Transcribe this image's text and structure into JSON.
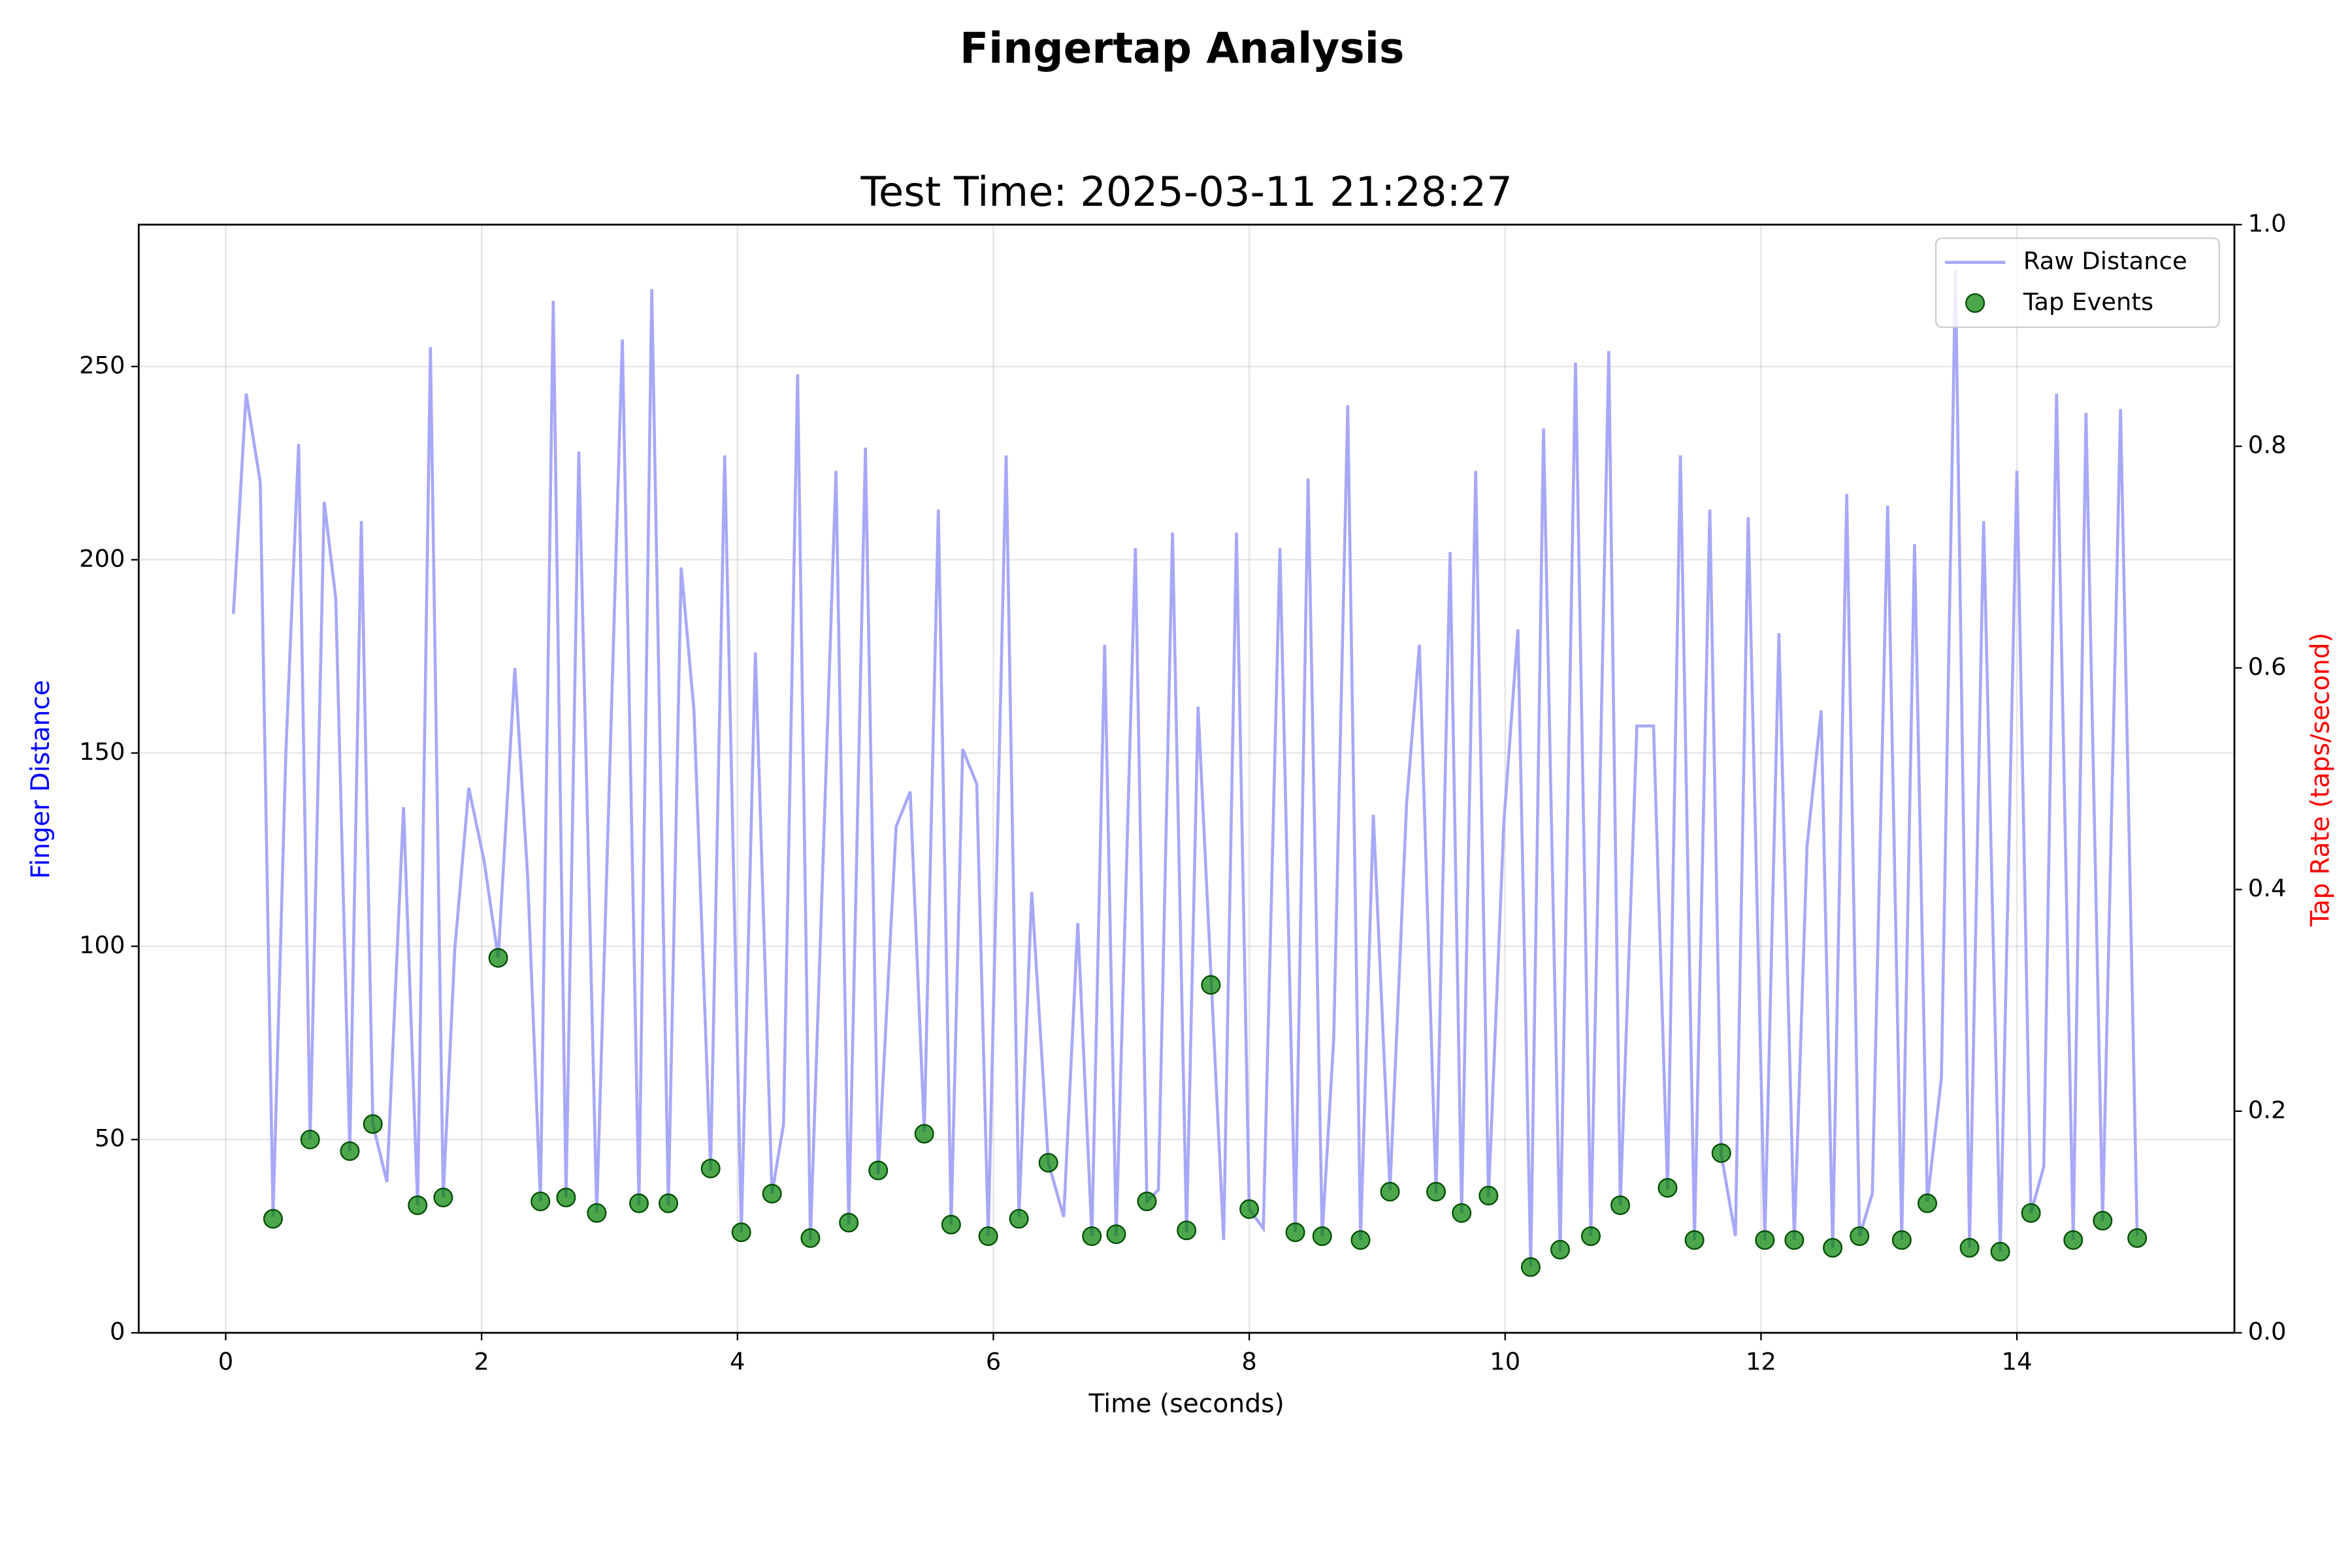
{
  "chart_data": {
    "type": "line",
    "title": "Fingertap Analysis",
    "subtitle": "Test Time: 2025-03-11 21:28:27",
    "xlabel": "Time (seconds)",
    "ylabel": "Finger Distance",
    "ylabel_color": "blue",
    "y2label": "Tap Rate (taps/second)",
    "y2label_color": "red",
    "xlim": [
      -0.68,
      15.7
    ],
    "xticks": [
      0,
      2,
      4,
      6,
      8,
      10,
      12,
      14
    ],
    "ylim": [
      0,
      286.7
    ],
    "yticks": [
      0,
      50,
      100,
      150,
      200,
      250
    ],
    "y2lim": [
      0,
      1
    ],
    "y2ticks": [
      {
        "value": 0,
        "label": "0.0"
      },
      0.2,
      0.4,
      0.6,
      0.8,
      {
        "value": 1,
        "label": "1.0"
      }
    ],
    "grid": true,
    "legend": "upper right",
    "series": [
      {
        "name": "Raw Distance",
        "type": "line",
        "color": "#a8a8f8",
        "x": [
          0.06,
          0.16,
          0.27,
          0.37,
          0.47,
          0.57,
          0.66,
          0.77,
          0.86,
          0.97,
          1.06,
          1.15,
          1.26,
          1.39,
          1.5,
          1.6,
          1.7,
          1.79,
          1.9,
          2.02,
          2.13,
          2.26,
          2.36,
          2.46,
          2.56,
          2.66,
          2.76,
          2.9,
          3.1,
          3.23,
          3.33,
          3.46,
          3.56,
          3.66,
          3.79,
          3.9,
          4.03,
          4.14,
          4.27,
          4.36,
          4.47,
          4.57,
          4.77,
          4.87,
          5.0,
          5.1,
          5.24,
          5.35,
          5.46,
          5.57,
          5.67,
          5.76,
          5.87,
          5.96,
          6.1,
          6.2,
          6.3,
          6.43,
          6.55,
          6.66,
          6.77,
          6.87,
          6.96,
          7.11,
          7.2,
          7.29,
          7.4,
          7.51,
          7.6,
          7.8,
          7.9,
          8.0,
          8.11,
          8.24,
          8.36,
          8.46,
          8.57,
          8.66,
          8.77,
          8.87,
          8.97,
          9.1,
          9.23,
          9.33,
          9.46,
          9.57,
          9.66,
          9.77,
          9.87,
          9.99,
          10.1,
          10.2,
          10.3,
          10.43,
          10.55,
          10.67,
          10.81,
          10.9,
          11.03,
          11.16,
          11.27,
          11.37,
          11.48,
          11.6,
          11.69,
          11.8,
          11.9,
          12.03,
          12.14,
          12.26,
          12.36,
          12.47,
          12.56,
          12.67,
          12.77,
          12.87,
          12.99,
          13.1,
          13.2,
          13.3,
          13.41,
          13.52,
          13.63,
          13.74,
          13.87,
          14.0,
          14.11,
          14.21,
          14.31,
          14.44,
          14.54,
          14.67,
          14.81,
          14.94
        ],
        "values": [
          186,
          243,
          220,
          30,
          150,
          230,
          50,
          215,
          190,
          47,
          210,
          54,
          39,
          136,
          33,
          255,
          35,
          99,
          141,
          122,
          97,
          172,
          118,
          34,
          267,
          35,
          228,
          31,
          257,
          33,
          270,
          33,
          198,
          161,
          42,
          227,
          26,
          176,
          36,
          54,
          248,
          24,
          223,
          28,
          229,
          41,
          131,
          140,
          52,
          213,
          28,
          151,
          142,
          25,
          227,
          30,
          114,
          44,
          30,
          106,
          25,
          178,
          25,
          203,
          34,
          37,
          207,
          26,
          162,
          24,
          207,
          32,
          27,
          203,
          26,
          221,
          25,
          76,
          240,
          24,
          134,
          37,
          137,
          178,
          36,
          202,
          31,
          223,
          35,
          132,
          182,
          17,
          234,
          21,
          251,
          25,
          254,
          33,
          157,
          157,
          37,
          227,
          24,
          213,
          46,
          25,
          211,
          24,
          181,
          24,
          126,
          161,
          22,
          217,
          25,
          36,
          214,
          24,
          204,
          34,
          66,
          275,
          22,
          210,
          21,
          223,
          31,
          43,
          243,
          24,
          238,
          29,
          239,
          25
        ]
      },
      {
        "name": "Tap Events",
        "type": "scatter",
        "color": "green",
        "x": [
          0.37,
          0.66,
          0.97,
          1.15,
          1.5,
          1.7,
          2.13,
          2.46,
          2.66,
          2.9,
          3.23,
          3.46,
          3.79,
          4.03,
          4.27,
          4.57,
          4.87,
          5.1,
          5.46,
          5.67,
          5.96,
          6.2,
          6.43,
          6.77,
          6.96,
          7.2,
          7.51,
          7.7,
          8.0,
          8.36,
          8.57,
          8.87,
          9.1,
          9.46,
          9.66,
          9.87,
          10.2,
          10.43,
          10.67,
          10.9,
          11.27,
          11.48,
          11.69,
          12.03,
          12.26,
          12.56,
          12.77,
          13.1,
          13.3,
          13.63,
          13.87,
          14.11,
          14.44,
          14.67,
          14.94
        ],
        "values": [
          29.5,
          50,
          47,
          54,
          33,
          35,
          97,
          34,
          35,
          31,
          33.5,
          33.5,
          42.5,
          26,
          36,
          24.5,
          28.5,
          42,
          51.5,
          28,
          25,
          29.5,
          44,
          25,
          25.5,
          34,
          26.5,
          90,
          32,
          26,
          25,
          24,
          36.5,
          36.5,
          31,
          35.5,
          17,
          21.5,
          25,
          33,
          37.5,
          24,
          46.5,
          24,
          24,
          22,
          25,
          24,
          33.5,
          22,
          21,
          31,
          24,
          29,
          24.5
        ]
      }
    ]
  }
}
